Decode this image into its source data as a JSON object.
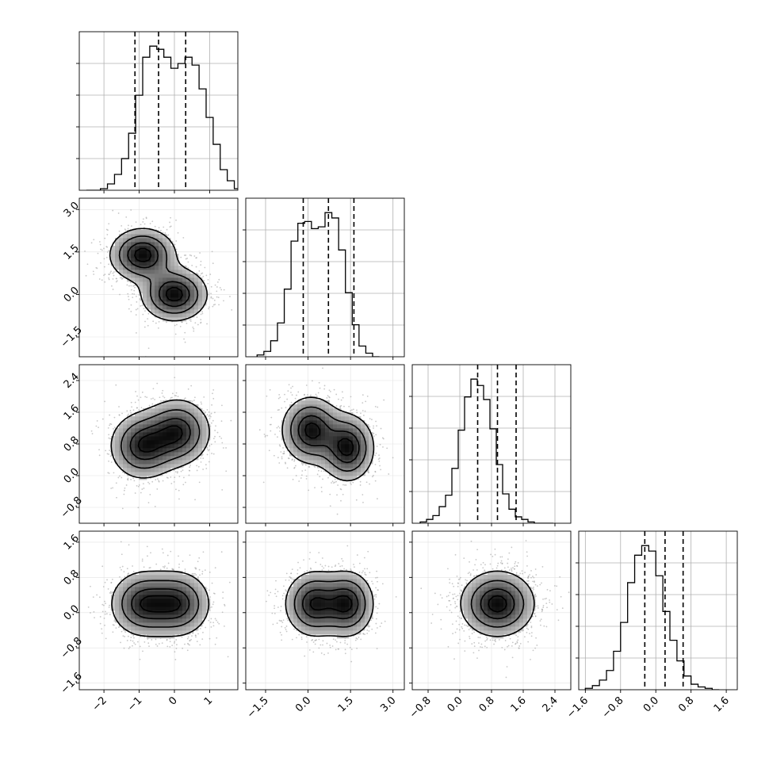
{
  "chart_data": {
    "type": "corner",
    "dimensions": 4,
    "background": "#ffffff",
    "ink_color": "#000000",
    "grid": true,
    "grid_color": "#b0b0b0",
    "point_color": "#9a9a9a",
    "quantile_line_style": "dashed",
    "axes": [
      {
        "range": [
          -2.7,
          1.8
        ],
        "ticks": [
          -2,
          -1,
          0,
          1
        ],
        "tick_labels": [
          "−2",
          "−1",
          "0",
          "1"
        ]
      },
      {
        "range": [
          -2.2,
          3.4
        ],
        "ticks": [
          -1.5,
          0.0,
          1.5,
          3.0
        ],
        "tick_labels": [
          "−1.5",
          "0.0",
          "1.5",
          "3.0"
        ]
      },
      {
        "range": [
          -1.2,
          2.8
        ],
        "ticks": [
          -0.8,
          0.0,
          0.8,
          1.6,
          2.4
        ],
        "tick_labels": [
          "−0.8",
          "0.0",
          "0.8",
          "1.6",
          "2.4"
        ]
      },
      {
        "range": [
          -1.75,
          1.85
        ],
        "ticks": [
          -1.6,
          -0.8,
          0.0,
          0.8,
          1.6
        ],
        "tick_labels": [
          "−1.6",
          "−0.8",
          "0.0",
          "0.8",
          "1.6"
        ]
      }
    ],
    "histograms": [
      {
        "bin_start": -2.5,
        "bin_width": 0.2,
        "counts": [
          0,
          0,
          1,
          4,
          10,
          20,
          36,
          60,
          84,
          91,
          89,
          84,
          77,
          80,
          84,
          79,
          64,
          46,
          29,
          13,
          6,
          1,
          0,
          0
        ],
        "quantiles": [
          -1.12,
          -0.45,
          0.32
        ]
      },
      {
        "bin_start": -1.8,
        "bin_width": 0.24,
        "counts": [
          1,
          3,
          9,
          19,
          38,
          65,
          75,
          76,
          72,
          73,
          81,
          78,
          60,
          36,
          18,
          6,
          2,
          0
        ],
        "quantiles": [
          -0.17,
          0.72,
          1.62
        ]
      },
      {
        "bin_start": -1.0,
        "bin_width": 0.16,
        "counts": [
          1,
          3,
          6,
          13,
          22,
          43,
          73,
          99,
          113,
          108,
          97,
          74,
          46,
          23,
          11,
          5,
          3,
          1,
          0,
          0,
          0
        ],
        "quantiles": [
          0.45,
          0.95,
          1.42
        ]
      },
      {
        "bin_start": -1.6,
        "bin_width": 0.16,
        "counts": [
          1,
          3,
          7,
          14,
          28,
          49,
          78,
          98,
          105,
          101,
          83,
          57,
          36,
          21,
          10,
          4,
          2,
          1,
          0
        ],
        "quantiles": [
          -0.25,
          0.21,
          0.62
        ]
      }
    ],
    "pairs": [
      {
        "x_dim": 0,
        "y_dim": 1,
        "modes": [
          {
            "x": -0.9,
            "y": 1.4,
            "sx": 0.5,
            "sy": 0.5,
            "r": 0.0
          },
          {
            "x": 0.0,
            "y": 0.0,
            "sx": 0.5,
            "sy": 0.5,
            "r": 0.0
          }
        ]
      },
      {
        "x_dim": 0,
        "y_dim": 2,
        "modes": [
          {
            "x": -0.9,
            "y": 0.75,
            "sx": 0.5,
            "sy": 0.45,
            "r": 0.0
          },
          {
            "x": 0.1,
            "y": 1.1,
            "sx": 0.5,
            "sy": 0.45,
            "r": 0.0
          }
        ]
      },
      {
        "x_dim": 1,
        "y_dim": 2,
        "modes": [
          {
            "x": 0.1,
            "y": 1.15,
            "sx": 0.55,
            "sy": 0.45,
            "r": 0.0
          },
          {
            "x": 1.4,
            "y": 0.7,
            "sx": 0.5,
            "sy": 0.45,
            "r": 0.0
          }
        ]
      },
      {
        "x_dim": 0,
        "y_dim": 3,
        "modes": [
          {
            "x": -0.9,
            "y": 0.2,
            "sx": 0.5,
            "sy": 0.4,
            "r": 0.0
          },
          {
            "x": 0.1,
            "y": 0.2,
            "sx": 0.5,
            "sy": 0.4,
            "r": 0.0
          }
        ]
      },
      {
        "x_dim": 1,
        "y_dim": 3,
        "modes": [
          {
            "x": 0.2,
            "y": 0.2,
            "sx": 0.55,
            "sy": 0.4,
            "r": 0.0
          },
          {
            "x": 1.4,
            "y": 0.2,
            "sx": 0.5,
            "sy": 0.4,
            "r": 0.0
          }
        ]
      },
      {
        "x_dim": 2,
        "y_dim": 3,
        "modes": [
          {
            "x": 0.95,
            "y": 0.2,
            "sx": 0.5,
            "sy": 0.4,
            "r": 0.0
          }
        ]
      }
    ]
  }
}
